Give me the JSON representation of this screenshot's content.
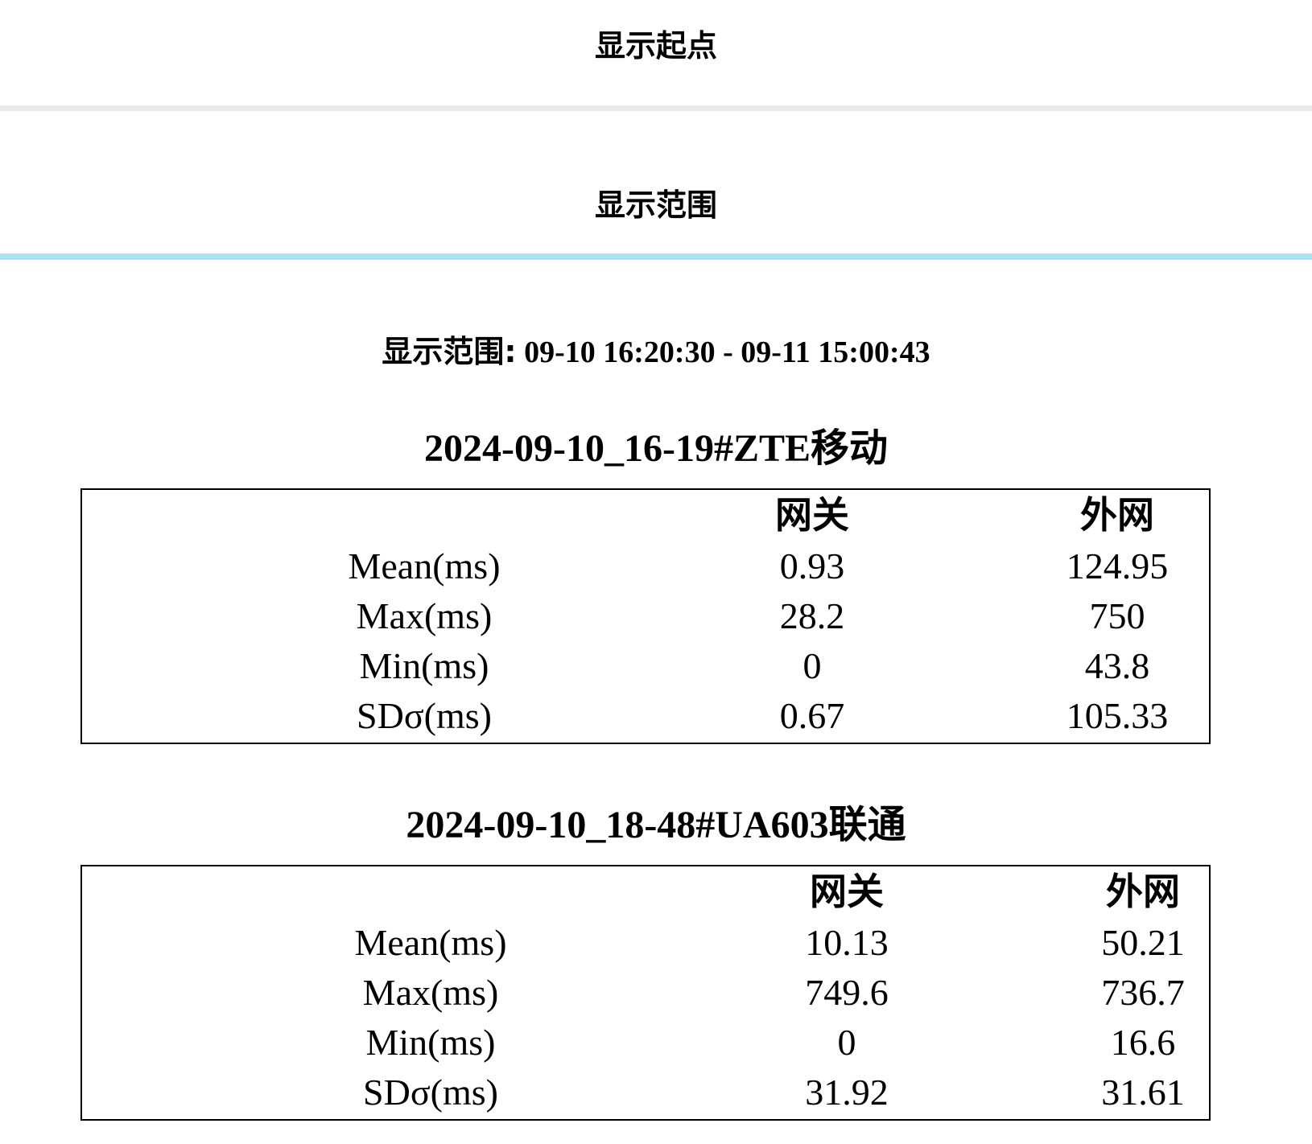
{
  "header": {
    "start_label": "显示起点",
    "range_label": "显示范围"
  },
  "range": {
    "label": "显示范围:",
    "value": "09-10 16:20:30 - 09-11 15:00:43"
  },
  "columns": [
    "网关",
    "外网"
  ],
  "blocks": [
    {
      "title": "2024-09-10_16-19#ZTE移动",
      "rows": [
        {
          "label": "Mean(ms)",
          "gateway": "0.93",
          "external": "124.95"
        },
        {
          "label": "Max(ms)",
          "gateway": "28.2",
          "external": "750"
        },
        {
          "label": "Min(ms)",
          "gateway": "0",
          "external": "43.8"
        },
        {
          "label": "SDσ(ms)",
          "gateway": "0.67",
          "external": "105.33"
        }
      ]
    },
    {
      "title": "2024-09-10_18-48#UA603联通",
      "rows": [
        {
          "label": "Mean(ms)",
          "gateway": "10.13",
          "external": "50.21"
        },
        {
          "label": "Max(ms)",
          "gateway": "749.6",
          "external": "736.7"
        },
        {
          "label": "Min(ms)",
          "gateway": "0",
          "external": "16.6"
        },
        {
          "label": "SDσ(ms)",
          "gateway": "31.92",
          "external": "31.61"
        }
      ]
    }
  ],
  "colors": {
    "divider_gray": "#e9e9e9",
    "divider_blue": "#aee0f5",
    "border": "#000000"
  }
}
